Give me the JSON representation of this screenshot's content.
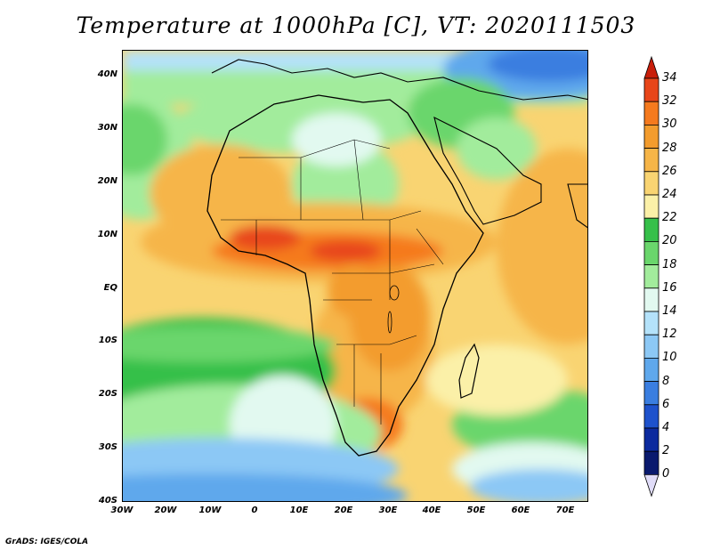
{
  "title": "Temperature at 1000hPa [C], VT: 2020111503",
  "map": {
    "lat_labels": [
      "40N",
      "30N",
      "20N",
      "10N",
      "EQ",
      "10S",
      "20S",
      "30S",
      "40S"
    ],
    "lon_labels": [
      "30W",
      "20W",
      "10W",
      "0",
      "10E",
      "20E",
      "30E",
      "40E",
      "50E",
      "60E",
      "70E"
    ],
    "lat_range": [
      -40,
      45
    ],
    "lon_range": [
      -30,
      75
    ],
    "region": "Africa"
  },
  "colorbar": {
    "levels": [
      "34",
      "32",
      "30",
      "28",
      "26",
      "24",
      "22",
      "20",
      "18",
      "16",
      "14",
      "12",
      "10",
      "8",
      "6",
      "4",
      "2",
      "0"
    ],
    "colors": [
      "#c81e0a",
      "#e8461a",
      "#f57a1e",
      "#f39c2d",
      "#f6b548",
      "#f9d472",
      "#fbf0a8",
      "#36c04a",
      "#6ad66c",
      "#a2ec9c",
      "#e2f9f0",
      "#b4e2fa",
      "#8cc8f5",
      "#5fa8ec",
      "#3a7ee0",
      "#1e52cc",
      "#0c2a9e",
      "#0a1a6e",
      "#e0dcf8"
    ]
  },
  "credit": "GrADS: IGES/COLA"
}
